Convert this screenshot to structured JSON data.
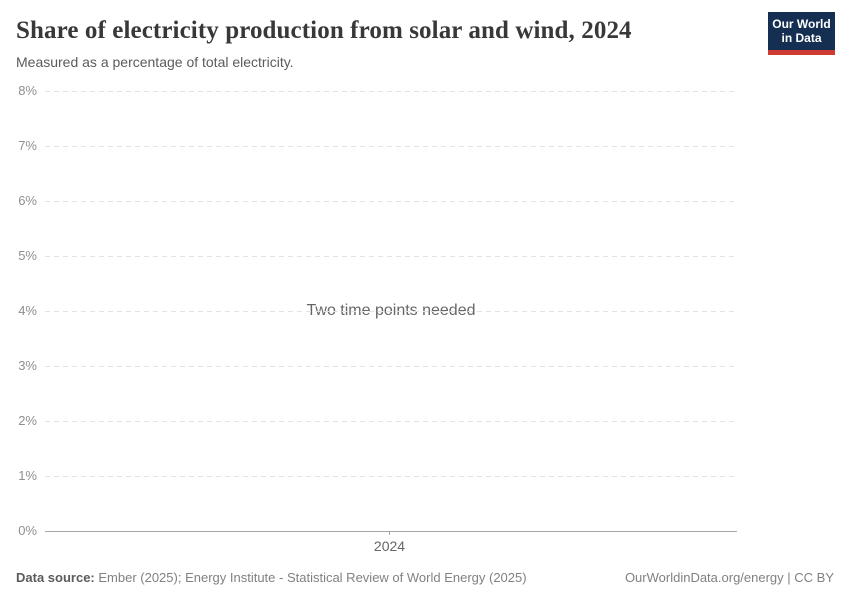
{
  "header": {
    "title": "Share of electricity production from solar and wind, 2024",
    "subtitle": "Measured as a percentage of total electricity.",
    "logo": {
      "line1": "Our World",
      "line2": "in Data",
      "bg_color": "#142f52",
      "bar_color": "#cf3b33",
      "text_color": "#ffffff"
    }
  },
  "chart_data": {
    "type": "line",
    "title": "Share of electricity production from solar and wind, 2024",
    "subtitle": "Measured as a percentage of total electricity.",
    "note": "Two time points needed",
    "series": [],
    "x": [
      "2024"
    ],
    "xticks": [
      "2024"
    ],
    "yticks": [
      "0%",
      "1%",
      "2%",
      "3%",
      "4%",
      "5%",
      "6%",
      "7%",
      "8%"
    ],
    "ylim": [
      0,
      8
    ],
    "ytick_suffix": "%",
    "grid": "horizontal-dashed",
    "legend": "none",
    "colors": {
      "gridline": "#e3e3e3",
      "axis_line": "#a6a6a6",
      "tick_label": "#8f8f8f",
      "note_text": "#666666"
    }
  },
  "footer": {
    "source_label": "Data source:",
    "source_text": " Ember (2025); Energy Institute - Statistical Review of World Energy (2025)",
    "rights": "OurWorldinData.org/energy | CC BY"
  }
}
